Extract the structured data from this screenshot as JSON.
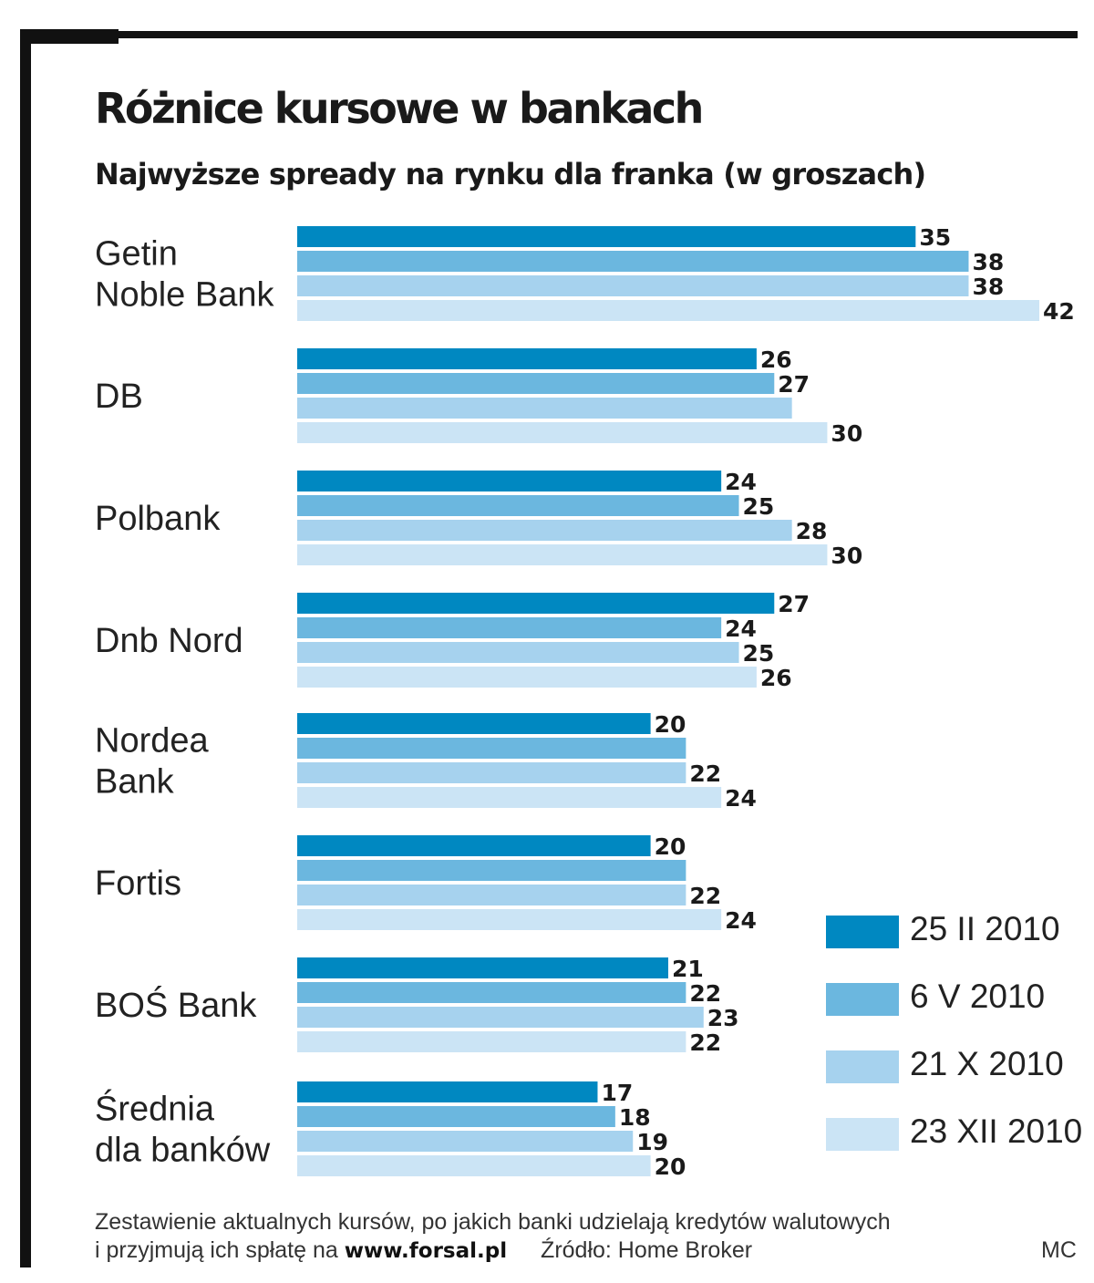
{
  "header": {
    "title": "Różnice kursowe w bankach",
    "subtitle": "Najwyższe spready na rynku dla franka (w groszach)"
  },
  "chart_data": {
    "type": "bar",
    "orientation": "horizontal",
    "title": "Różnice kursowe w bankach",
    "subtitle": "Najwyższe spready na rynku dla franka (w groszach)",
    "categories": [
      [
        "Getin",
        "Noble Bank"
      ],
      [
        "DB"
      ],
      [
        "Polbank"
      ],
      [
        "Dnb Nord"
      ],
      [
        "Nordea",
        "Bank"
      ],
      [
        "Fortis"
      ],
      [
        "BOŚ Bank"
      ],
      [
        "Średnia",
        "dla banków"
      ]
    ],
    "series": [
      {
        "name": "25 II 2010",
        "color": "#0088c1",
        "values": [
          35,
          26,
          24,
          27,
          20,
          20,
          21,
          17
        ]
      },
      {
        "name": "6 V 2010",
        "color": "#6bb7df",
        "values": [
          38,
          27,
          25,
          24,
          22,
          22,
          22,
          18
        ]
      },
      {
        "name": "21 X 2010",
        "color": "#a6d2ee",
        "values": [
          38,
          28,
          28,
          25,
          22,
          22,
          23,
          19
        ]
      },
      {
        "name": "23 XII 2010",
        "color": "#cbe4f5",
        "values": [
          42,
          30,
          30,
          26,
          24,
          24,
          22,
          20
        ]
      }
    ],
    "hidden_labels": [
      [
        1,
        2
      ],
      [
        4,
        1
      ],
      [
        5,
        1
      ]
    ],
    "xlim": [
      0,
      42
    ],
    "grid": false,
    "axes_visible": false,
    "legend_position": "bottom-right"
  },
  "footer": {
    "note_line1": "Zestawienie aktualnych kursów, po jakich banki udzielają kredytów walutowych",
    "note_line2": "i przyjmują ich spłatę na",
    "website": "www.forsal.pl",
    "source": "Źródło: Home Broker",
    "credit": "MC"
  }
}
